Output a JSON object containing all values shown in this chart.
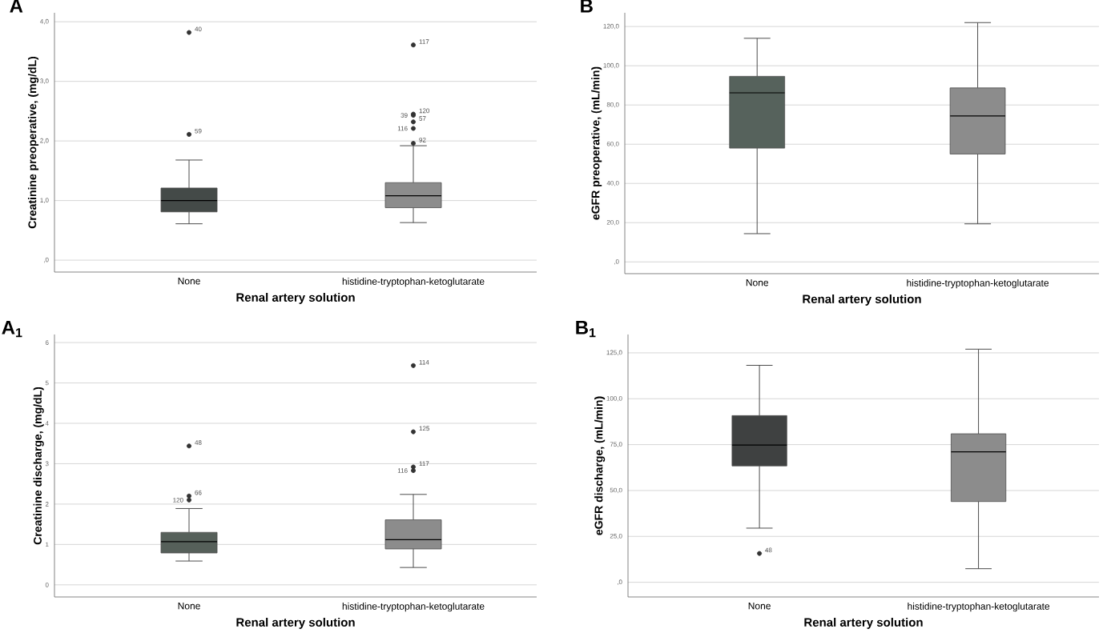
{
  "chart_data": [
    {
      "type": "box",
      "title": "A",
      "xlabel": "Renal artery solution",
      "ylabel": "Creatinine preoperative, (mg/dL)",
      "categories": [
        "None",
        "histidine-tryptophan-ketoglutarate"
      ],
      "colors": [
        "#444a48",
        "#8c8c8c"
      ],
      "grid": "y",
      "ylim": [
        -0.2,
        4.15
      ],
      "yticks": [
        {
          "value": 0,
          "label": ",0"
        },
        {
          "value": 1,
          "label": "1,0"
        },
        {
          "value": 2,
          "label": "2,0"
        },
        {
          "value": 3,
          "label": "3,0"
        },
        {
          "value": 4,
          "label": "4,0"
        }
      ],
      "boxes": [
        {
          "low": 0.61,
          "q1": 0.81,
          "median": 1.0,
          "q3": 1.21,
          "high": 1.68,
          "outliers": [
            3.82,
            2.11
          ]
        },
        {
          "low": 0.63,
          "q1": 0.88,
          "median": 1.08,
          "q3": 1.3,
          "high": 1.92,
          "outliers": [
            3.61,
            2.45,
            2.43,
            2.32,
            2.21,
            1.96
          ]
        }
      ],
      "annotations": [
        "40",
        "59",
        "117",
        "120",
        "39",
        "57",
        "116",
        "92"
      ]
    },
    {
      "type": "box",
      "title": "B",
      "xlabel": "Renal artery solution",
      "ylabel": "eGFR preoperative, (mL/min)",
      "categories": [
        "None",
        "histidine-tryptophan-ketoglutarate"
      ],
      "colors": [
        "#56625c",
        "#8c8c8c"
      ],
      "grid": "y",
      "ylim": [
        -6,
        127
      ],
      "yticks": [
        {
          "value": 0,
          "label": ",0"
        },
        {
          "value": 20,
          "label": "20,0"
        },
        {
          "value": 40,
          "label": "40,0"
        },
        {
          "value": 60,
          "label": "60,0"
        },
        {
          "value": 80,
          "label": "80,0"
        },
        {
          "value": 100,
          "label": "100,0"
        },
        {
          "value": 120,
          "label": "120,0"
        }
      ],
      "boxes": [
        {
          "low": 14.4,
          "q1": 58,
          "median": 86.2,
          "q3": 94.6,
          "high": 114
        },
        {
          "low": 19.4,
          "q1": 55,
          "median": 74.4,
          "q3": 88.7,
          "high": 122
        }
      ]
    },
    {
      "type": "box",
      "title": "A$_{1}$",
      "xlabel": "Renal artery solution",
      "ylabel": "Creatinine discharge, (mg/dL)",
      "categories": [
        "None",
        "histidine-tryptophan-ketoglutarate"
      ],
      "colors": [
        "#56605a",
        "#8c8c8c"
      ],
      "grid": "y",
      "ylim": [
        -0.3,
        6.2
      ],
      "yticks": [
        0,
        1,
        2,
        3,
        4,
        5,
        6
      ],
      "boxes": [
        {
          "low": 0.59,
          "q1": 0.79,
          "median": 1.07,
          "q3": 1.3,
          "high": 1.89,
          "outliers": [
            3.44,
            2.2,
            2.1
          ]
        },
        {
          "low": 0.43,
          "q1": 0.89,
          "median": 1.12,
          "q3": 1.61,
          "high": 2.24,
          "outliers": [
            5.43,
            3.79,
            2.92,
            2.83
          ]
        }
      ],
      "annotations": [
        "48",
        "66",
        "120",
        "114",
        "125",
        "117",
        "116"
      ]
    },
    {
      "type": "box",
      "title": "B$_{1}$",
      "xlabel": "Renal artery solution",
      "ylabel": "eGFR discharge, (mL/min)",
      "categories": [
        "None",
        "histidine-tryptophan-ketoglutarate"
      ],
      "colors": [
        "#3f4141",
        "#8c8c8c"
      ],
      "grid": "y",
      "ylim": [
        -8,
        135
      ],
      "yticks": [
        {
          "value": 0,
          "label": ",0"
        },
        {
          "value": 25,
          "label": "25,0"
        },
        {
          "value": 50,
          "label": "50,0"
        },
        {
          "value": 75,
          "label": "75,0"
        },
        {
          "value": 100,
          "label": "100,0"
        },
        {
          "value": 125,
          "label": "125,0"
        }
      ],
      "boxes": [
        {
          "low": 29.5,
          "q1": 63.4,
          "median": 74.8,
          "q3": 90.8,
          "high": 118.2,
          "outliers": [
            15.7
          ]
        },
        {
          "low": 7.4,
          "q1": 44,
          "median": 71.1,
          "q3": 80.9,
          "high": 127
        }
      ],
      "annotations": [
        "48"
      ]
    }
  ]
}
